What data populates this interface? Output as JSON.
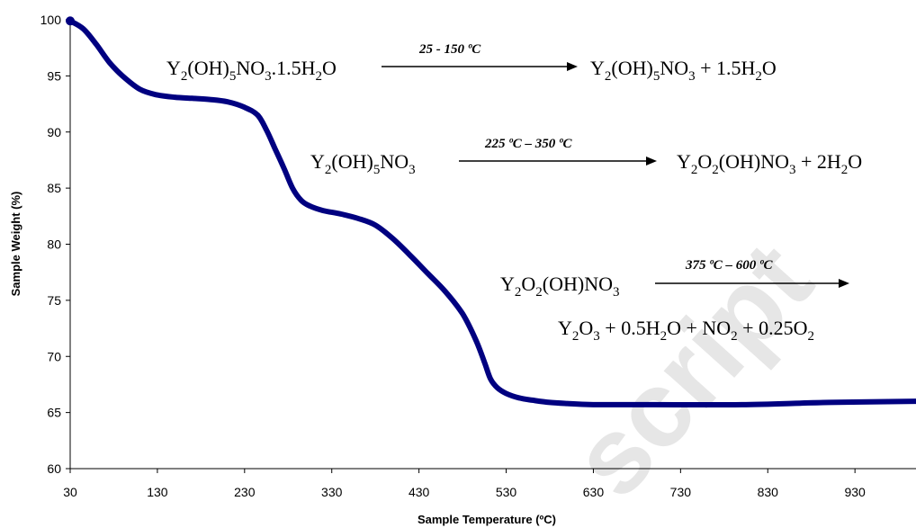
{
  "chart_data": {
    "type": "line",
    "xlabel": "Sample Temperature (ºC)",
    "ylabel": "Sample Weight (%)",
    "xlim": [
      30,
      1000
    ],
    "ylim": [
      60,
      100
    ],
    "x_ticks": [
      "30",
      "130",
      "230",
      "330",
      "430",
      "530",
      "630",
      "730",
      "830",
      "930"
    ],
    "y_ticks": [
      "60",
      "65",
      "70",
      "75",
      "80",
      "85",
      "90",
      "95",
      "100"
    ],
    "grid": false,
    "line_color": "#000080",
    "series": [
      {
        "x": [
          30,
          45,
          60,
          75,
          90,
          110,
          130,
          150,
          170,
          190,
          210,
          230,
          245,
          255,
          265,
          275,
          285,
          295,
          305,
          320,
          340,
          360,
          380,
          400,
          420,
          440,
          460,
          480,
          495,
          505,
          512,
          520,
          530,
          545,
          560,
          580,
          600,
          630,
          700,
          800,
          900,
          1000
        ],
        "y": [
          99.9,
          99.2,
          97.8,
          96.2,
          95.0,
          93.8,
          93.3,
          93.1,
          93.0,
          92.9,
          92.7,
          92.2,
          91.5,
          90.2,
          88.5,
          86.8,
          85.0,
          83.9,
          83.4,
          83.0,
          82.7,
          82.3,
          81.7,
          80.5,
          79.0,
          77.4,
          75.8,
          73.8,
          71.5,
          69.5,
          68.0,
          67.2,
          66.7,
          66.3,
          66.1,
          65.9,
          65.8,
          65.7,
          65.7,
          65.7,
          65.9,
          66.0
        ]
      }
    ]
  },
  "annotations": {
    "r1_formula": [
      "Y",
      "2",
      "(OH)",
      "5",
      "NO",
      "3",
      ".1.5H",
      "2",
      "O"
    ],
    "r1_condition": "25 - 150 ºC",
    "r1_product": [
      "Y",
      "2",
      "(OH)",
      "5",
      "NO",
      "3",
      " + 1.5H",
      "2",
      "O"
    ],
    "r2_formula": [
      "Y",
      "2",
      "(OH)",
      "5",
      "NO",
      "3"
    ],
    "r2_condition": "225 ºC – 350 ºC",
    "r2_product": [
      "Y",
      "2",
      "O",
      "2",
      "(OH)NO",
      "3",
      " + 2H",
      "2",
      "O"
    ],
    "r3_formula": [
      "Y",
      "2",
      "O",
      "2",
      "(OH)NO",
      "3"
    ],
    "r3_condition": "375 ºC – 600 ºC",
    "r3_product": [
      "Y",
      "2",
      "O",
      "3",
      " + 0.5H",
      "2",
      "O + NO",
      "2",
      " + 0.25O",
      "2"
    ]
  },
  "watermark": "script"
}
